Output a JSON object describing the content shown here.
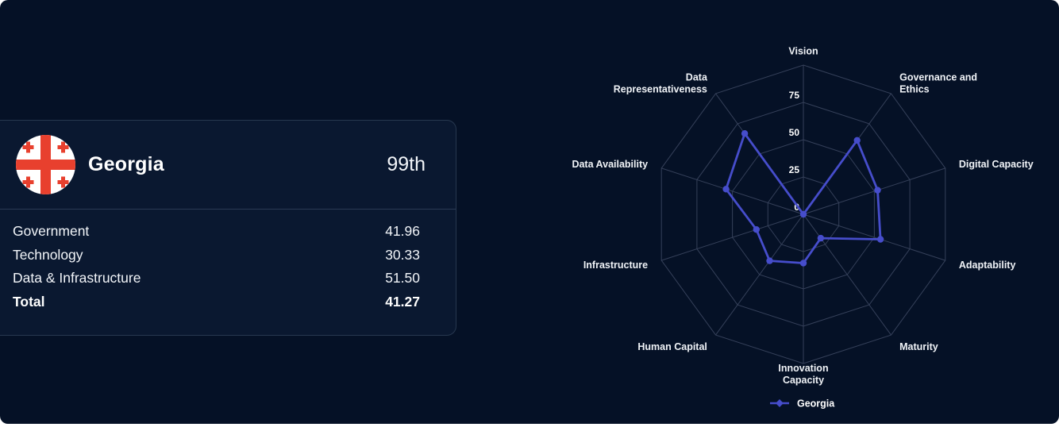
{
  "theme": {
    "page_bg": "#051126",
    "card_bg": "#0a1830",
    "card_border": "#27384f",
    "divider": "#2b3b55",
    "grid_color": "#45506b",
    "series_color": "#464dcb",
    "text_color": "#ffffff",
    "flag_red": "#e8402e",
    "flag_white": "#ffffff"
  },
  "country_card": {
    "flag_icon": "georgia-flag",
    "country_name": "Georgia",
    "rank": "99th",
    "rows": [
      {
        "label": "Government",
        "value": "41.96",
        "bold": false
      },
      {
        "label": "Technology",
        "value": "30.33",
        "bold": false
      },
      {
        "label": "Data & Infrastructure",
        "value": "51.50",
        "bold": false
      },
      {
        "label": "Total",
        "value": "41.27",
        "bold": true
      }
    ]
  },
  "chart_data": {
    "type": "radar",
    "title": "",
    "categories": [
      "Vision",
      "Governance and Ethics",
      "Digital Capacity",
      "Adaptability",
      "Maturity",
      "Innovation Capacity",
      "Human Capital",
      "Infrastructure",
      "Data Availability",
      "Data Representativeness"
    ],
    "label_lines": [
      [
        "Vision"
      ],
      [
        "Governance and",
        "Ethics"
      ],
      [
        "Digital Capacity"
      ],
      [
        "Adaptability"
      ],
      [
        "Maturity"
      ],
      [
        "Innovation",
        "Capacity"
      ],
      [
        "Human Capital"
      ],
      [
        "Infrastructure"
      ],
      [
        "Data Availability"
      ],
      [
        "Data",
        "Representativeness"
      ]
    ],
    "series": [
      {
        "name": "Georgia",
        "values": [
          0.0,
          61.3,
          52.3,
          54.3,
          19.8,
          32.7,
          38.5,
          33.1,
          54.5,
          66.9
        ]
      }
    ],
    "radial_ticks": [
      0,
      25,
      50,
      75
    ],
    "rlim": [
      0,
      100
    ],
    "grid": true,
    "legend_position": "bottom"
  }
}
